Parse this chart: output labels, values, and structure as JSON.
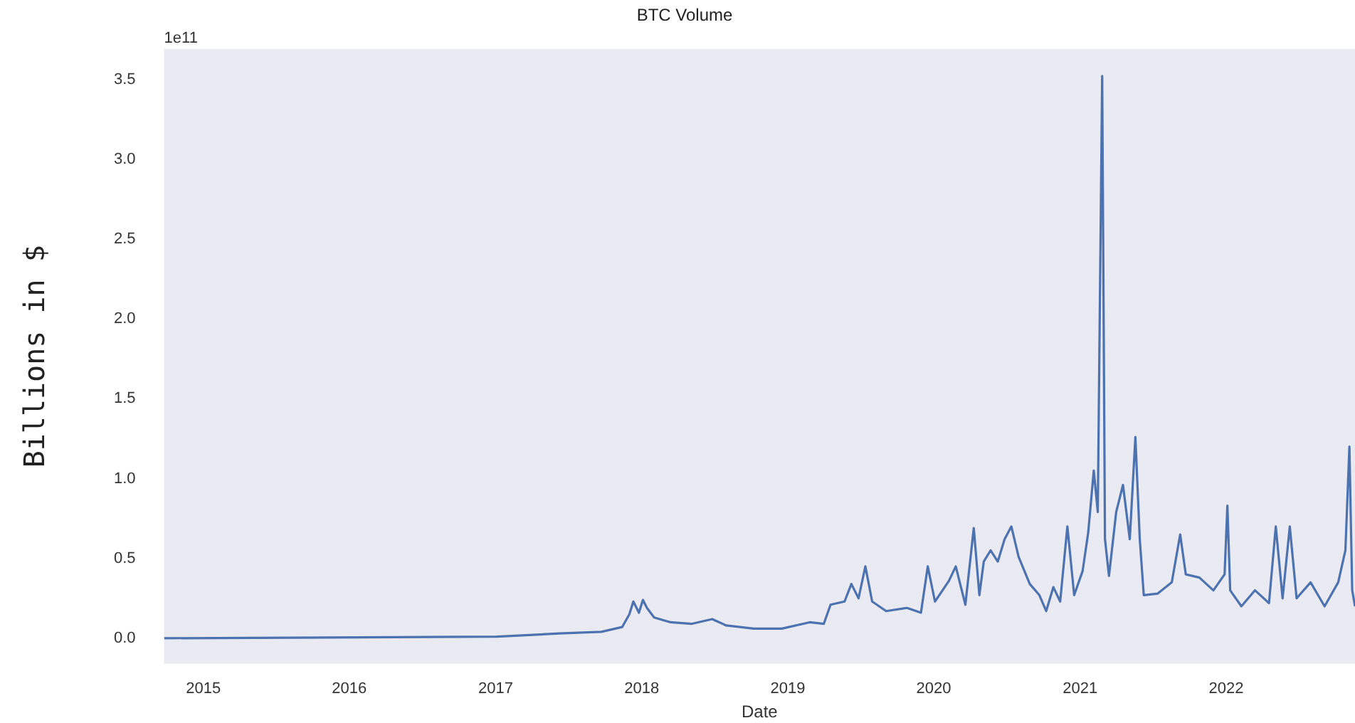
{
  "chart_data": {
    "type": "line",
    "title": "BTC Volume",
    "xlabel": "Date",
    "ylabel": "Billions in $",
    "annotations": [
      "1e11"
    ],
    "x": [
      "2014-09-25",
      "2017-01-04",
      "2017-06-09",
      "2017-09-22",
      "2017-11-13",
      "2017-12-01",
      "2017-12-11",
      "2017-12-25",
      "2018-01-04",
      "2018-01-14",
      "2018-02-01",
      "2018-03-14",
      "2018-05-05",
      "2018-06-26",
      "2018-07-31",
      "2018-10-08",
      "2018-12-17",
      "2019-02-25",
      "2019-04-01",
      "2019-04-18",
      "2019-05-23",
      "2019-06-09",
      "2019-06-27",
      "2019-07-14",
      "2019-07-31",
      "2019-09-04",
      "2019-10-26",
      "2019-11-30",
      "2019-12-17",
      "2020-01-04",
      "2020-02-08",
      "2020-02-25",
      "2020-03-20",
      "2020-04-10",
      "2020-04-24",
      "2020-05-05",
      "2020-05-22",
      "2020-06-09",
      "2020-06-26",
      "2020-07-13",
      "2020-07-31",
      "2020-08-28",
      "2020-09-21",
      "2020-10-08",
      "2020-10-26",
      "2020-11-12",
      "2020-11-30",
      "2020-12-17",
      "2021-01-07",
      "2021-01-21",
      "2021-02-04",
      "2021-02-14",
      "2021-02-25",
      "2021-03-04",
      "2021-03-14",
      "2021-04-01",
      "2021-04-18",
      "2021-05-05",
      "2021-05-19",
      "2021-05-30",
      "2021-06-09",
      "2021-07-14",
      "2021-08-18",
      "2021-09-08",
      "2021-09-22",
      "2021-10-26",
      "2021-11-30",
      "2021-12-28",
      "2022-01-04",
      "2022-01-11",
      "2022-02-08",
      "2022-03-14",
      "2022-04-18",
      "2022-05-05",
      "2022-05-22",
      "2022-06-09",
      "2022-06-26",
      "2022-07-31",
      "2022-09-04",
      "2022-10-08",
      "2022-10-26",
      "2022-11-05",
      "2022-11-12",
      "2022-11-19"
    ],
    "series": [
      {
        "color": "#4c72b0",
        "values": [
          0,
          0.01,
          0.03,
          0.04,
          0.07,
          0.15,
          0.23,
          0.16,
          0.24,
          0.19,
          0.13,
          0.1,
          0.09,
          0.12,
          0.08,
          0.06,
          0.06,
          0.1,
          0.09,
          0.21,
          0.23,
          0.34,
          0.25,
          0.45,
          0.23,
          0.17,
          0.19,
          0.16,
          0.45,
          0.23,
          0.36,
          0.45,
          0.21,
          0.69,
          0.27,
          0.48,
          0.55,
          0.48,
          0.62,
          0.7,
          0.51,
          0.34,
          0.27,
          0.17,
          0.32,
          0.23,
          0.7,
          0.27,
          0.42,
          0.66,
          1.05,
          0.79,
          3.52,
          0.62,
          0.39,
          0.79,
          0.96,
          0.62,
          1.26,
          0.62,
          0.27,
          0.28,
          0.35,
          0.65,
          0.4,
          0.38,
          0.3,
          0.4,
          0.83,
          0.3,
          0.2,
          0.3,
          0.22,
          0.7,
          0.25,
          0.7,
          0.25,
          0.35,
          0.2,
          0.35,
          0.55,
          1.2,
          0.3,
          0.2
        ]
      }
    ],
    "xlim": [
      "2014-09-25",
      "2022-11-19"
    ],
    "xticks": [
      {
        "value": "2015-01-01",
        "label": "2015"
      },
      {
        "value": "2016-01-01",
        "label": "2016"
      },
      {
        "value": "2017-01-01",
        "label": "2017"
      },
      {
        "value": "2018-01-01",
        "label": "2018"
      },
      {
        "value": "2019-01-01",
        "label": "2019"
      },
      {
        "value": "2020-01-01",
        "label": "2020"
      },
      {
        "value": "2021-01-01",
        "label": "2021"
      },
      {
        "value": "2022-01-01",
        "label": "2022"
      }
    ],
    "ylim": [
      -0.16,
      3.69
    ],
    "yticks": [
      {
        "value": 0,
        "label": "0.0"
      },
      {
        "value": 0.5,
        "label": "0.5"
      },
      {
        "value": 1,
        "label": "1.0"
      },
      {
        "value": 1.5,
        "label": "1.5"
      },
      {
        "value": 2,
        "label": "2.0"
      },
      {
        "value": 2.5,
        "label": "2.5"
      },
      {
        "value": 3,
        "label": "3.0"
      },
      {
        "value": 3.5,
        "label": "3.5"
      }
    ],
    "grid": false,
    "legend": false,
    "marker": "none",
    "line_style": "solid"
  }
}
